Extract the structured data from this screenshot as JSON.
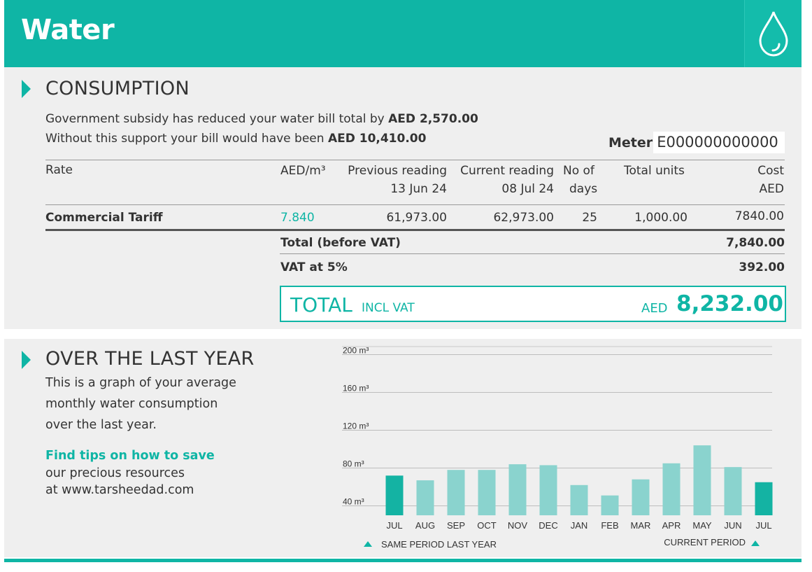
{
  "header": {
    "title": "Water",
    "icon": "water-drop-icon"
  },
  "consumption": {
    "title": "CONSUMPTION",
    "subsidy_line1_prefix": "Government subsidy has reduced your water bill total by ",
    "subsidy_amount": "AED 2,570.00",
    "subsidy_line2_prefix": "Without this support your bill would have been ",
    "without_amount": "AED 10,410.00",
    "meter_label": "Meter",
    "meter_value": "E000000000000",
    "columns": {
      "rate": "Rate",
      "aed_m3": "AED/m³",
      "previous_reading": "Previous reading",
      "previous_date": "13 Jun 24",
      "current_reading": "Current reading",
      "current_date": "08 Jul 24",
      "no_of": "No of",
      "days": "days",
      "total_units": "Total units",
      "cost": "Cost",
      "cost_unit": "AED"
    },
    "row": {
      "rate": "Commercial Tariff",
      "aed_m3": "7.840",
      "previous": "61,973.00",
      "current": "62,973.00",
      "days": "25",
      "units": "1,000.00",
      "cost": "7840.00"
    },
    "total_before_vat_label": "Total (before VAT)",
    "total_before_vat": "7,840.00",
    "vat_label": "VAT at 5%",
    "vat": "392.00",
    "total_label": "TOTAL",
    "total_incl": "INCL VAT",
    "total_currency": "AED",
    "total_amount": "8,232.00"
  },
  "last_year": {
    "title": "OVER THE LAST YEAR",
    "desc1": "This is a graph of your average",
    "desc2": "monthly water consumption",
    "desc3": "over the last year.",
    "tips_link": "Find tips on how to save",
    "tips2": "our precious resources",
    "tips3": "at www.tarsheedad.com"
  },
  "colors": {
    "teal": "#0fb5a5",
    "bar_light": "#8ad3ce",
    "bar_dark": "#14b3a3"
  },
  "chart_data": {
    "type": "bar",
    "title": "",
    "xlabel": "",
    "ylabel": "",
    "unit": "m³",
    "ylim": [
      30,
      210
    ],
    "yticks": [
      40,
      80,
      120,
      160,
      200
    ],
    "ytick_labels": [
      "40 m³",
      "80 m³",
      "120 m³",
      "160 m³",
      "200 m³"
    ],
    "categories": [
      "JUL",
      "AUG",
      "SEP",
      "OCT",
      "NOV",
      "DEC",
      "JAN",
      "FEB",
      "MAR",
      "APR",
      "MAY",
      "JUN",
      "JUL"
    ],
    "values": [
      72,
      67,
      78,
      78,
      84,
      83,
      62,
      51,
      68,
      85,
      104,
      81,
      65
    ],
    "highlight": [
      "same-period",
      "",
      "",
      "",
      "",
      "",
      "",
      "",
      "",
      "",
      "",
      "",
      "current"
    ],
    "legend": {
      "same_period": "SAME PERIOD LAST YEAR",
      "current": "CURRENT PERIOD"
    }
  }
}
